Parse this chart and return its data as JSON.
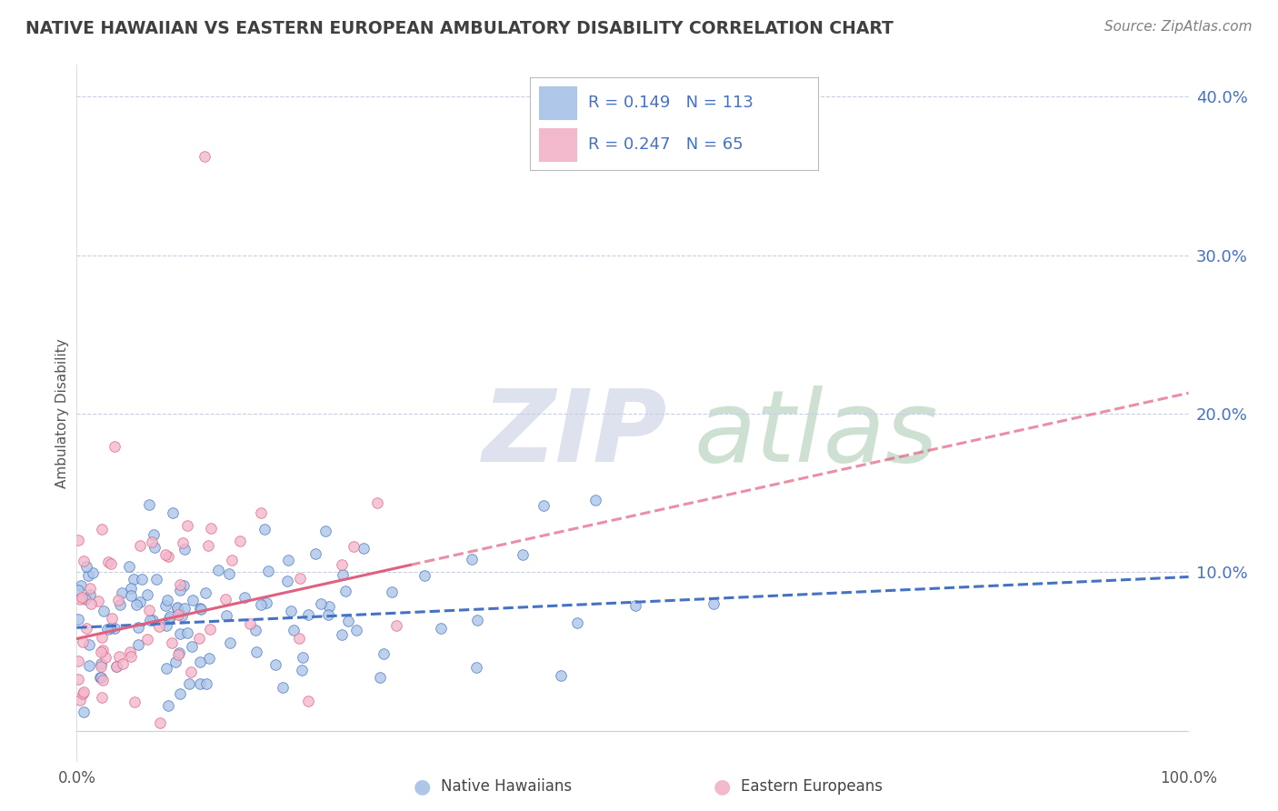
{
  "title": "NATIVE HAWAIIAN VS EASTERN EUROPEAN AMBULATORY DISABILITY CORRELATION CHART",
  "source": "Source: ZipAtlas.com",
  "ylabel": "Ambulatory Disability",
  "xmin": 0.0,
  "xmax": 1.0,
  "ymin": -0.02,
  "ymax": 0.42,
  "legend_label1": "Native Hawaiians",
  "legend_label2": "Eastern Europeans",
  "r1": 0.149,
  "n1": 113,
  "r2": 0.247,
  "n2": 65,
  "color1": "#aec6e8",
  "color2": "#f2b8cc",
  "line_color1": "#4472c4",
  "line_color2": "#e06080",
  "title_color": "#404040",
  "source_color": "#808080",
  "legend_text_color": "#4472c4",
  "background_color": "#ffffff",
  "grid_color": "#c8cfe0"
}
